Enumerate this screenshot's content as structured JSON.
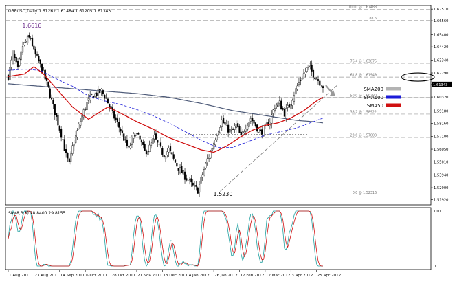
{
  "chart_data": {
    "type": "candlestick",
    "header": "GBPUSD,Daily  1.61262 1.61484 1.61205 1.61343",
    "price_axis": {
      "ticks": [
        "1.67510",
        "1.66560",
        "1.65400",
        "1.64420",
        "1.63340",
        "1.62290",
        "1.61343",
        "1.60320",
        "1.59180",
        "1.58160",
        "1.57100",
        "1.56050",
        "1.55010",
        "1.53940",
        "1.52900",
        "1.51920"
      ],
      "values": [
        1.6751,
        1.6656,
        1.654,
        1.6442,
        1.6334,
        1.6229,
        1.61343,
        1.6032,
        1.5918,
        1.5816,
        1.571,
        1.5605,
        1.5501,
        1.5394,
        1.529,
        1.5192
      ],
      "range": [
        1.515,
        1.678
      ]
    },
    "current_price": "1.61343",
    "horizontal_line_price": 1.6025,
    "fibonacci": [
      {
        "label": "100.0 @ 1.67488",
        "price": 1.67488
      },
      {
        "label": "88.6",
        "price": 1.6658
      },
      {
        "label": "76.4 @ 1.63075",
        "price": 1.63075
      },
      {
        "label": "61.8 @ 1.61949",
        "price": 1.61949
      },
      {
        "label": "50.0 @ 1.60280",
        "price": 1.6028
      },
      {
        "label": "38.2 @ 1.58922",
        "price": 1.58922
      },
      {
        "label": "23.6 @ 1.57008",
        "price": 1.57008
      },
      {
        "label": "0.0 @ 1.52316",
        "price": 1.52316
      }
    ],
    "annotations": [
      {
        "text": "1.6616",
        "index": 13,
        "price": 1.6616
      },
      {
        "text": "1.5230",
        "index": 132,
        "price": 1.523
      }
    ],
    "legend": [
      {
        "name": "SMA200",
        "color": "#b3b3b3"
      },
      {
        "name": "SMA100",
        "color": "#1b1bd8"
      },
      {
        "name": "SMA50",
        "color": "#d01010"
      }
    ],
    "date_labels": [
      {
        "text": "1 Aug 2011",
        "index": 0
      },
      {
        "text": "23 Aug 2011",
        "index": 16
      },
      {
        "text": "14 Sep 2011",
        "index": 32
      },
      {
        "text": "6 Oct 2011",
        "index": 48
      },
      {
        "text": "28 Oct 2011",
        "index": 64
      },
      {
        "text": "21 Nov 2011",
        "index": 80
      },
      {
        "text": "13 Dec 2011",
        "index": 96
      },
      {
        "text": "4 Jan 2012",
        "index": 112
      },
      {
        "text": "26 Jan 2012",
        "index": 128
      },
      {
        "text": "17 Feb 2012",
        "index": 144
      },
      {
        "text": "12 Mar 2012",
        "index": 160
      },
      {
        "text": "3 Apr 2012",
        "index": 176
      },
      {
        "text": "25 Apr 2012",
        "index": 192
      }
    ],
    "close_keypoints": [
      [
        0,
        1.62
      ],
      [
        3,
        1.638
      ],
      [
        6,
        1.625
      ],
      [
        9,
        1.645
      ],
      [
        12,
        1.65
      ],
      [
        14,
        1.652
      ],
      [
        16,
        1.64
      ],
      [
        19,
        1.632
      ],
      [
        22,
        1.622
      ],
      [
        25,
        1.61
      ],
      [
        28,
        1.595
      ],
      [
        31,
        1.582
      ],
      [
        34,
        1.568
      ],
      [
        36,
        1.555
      ],
      [
        38,
        1.548
      ],
      [
        40,
        1.562
      ],
      [
        43,
        1.575
      ],
      [
        46,
        1.588
      ],
      [
        49,
        1.598
      ],
      [
        52,
        1.604
      ],
      [
        55,
        1.606
      ],
      [
        58,
        1.608
      ],
      [
        61,
        1.602
      ],
      [
        64,
        1.592
      ],
      [
        67,
        1.584
      ],
      [
        70,
        1.576
      ],
      [
        73,
        1.566
      ],
      [
        75,
        1.56
      ],
      [
        77,
        1.568
      ],
      [
        79,
        1.574
      ],
      [
        82,
        1.568
      ],
      [
        85,
        1.558
      ],
      [
        88,
        1.562
      ],
      [
        91,
        1.57
      ],
      [
        94,
        1.562
      ],
      [
        97,
        1.556
      ],
      [
        100,
        1.56
      ],
      [
        103,
        1.552
      ],
      [
        106,
        1.545
      ],
      [
        109,
        1.54
      ],
      [
        112,
        1.535
      ],
      [
        115,
        1.53
      ],
      [
        118,
        1.527
      ],
      [
        121,
        1.54
      ],
      [
        124,
        1.552
      ],
      [
        127,
        1.562
      ],
      [
        130,
        1.574
      ],
      [
        133,
        1.584
      ],
      [
        136,
        1.578
      ],
      [
        139,
        1.574
      ],
      [
        142,
        1.58
      ],
      [
        145,
        1.57
      ],
      [
        148,
        1.58
      ],
      [
        151,
        1.586
      ],
      [
        154,
        1.58
      ],
      [
        157,
        1.574
      ],
      [
        160,
        1.578
      ],
      [
        163,
        1.584
      ],
      [
        166,
        1.596
      ],
      [
        169,
        1.598
      ],
      [
        172,
        1.59
      ],
      [
        175,
        1.596
      ],
      [
        178,
        1.606
      ],
      [
        181,
        1.615
      ],
      [
        184,
        1.622
      ],
      [
        187,
        1.628
      ],
      [
        190,
        1.622
      ],
      [
        193,
        1.617
      ],
      [
        196,
        1.612
      ]
    ],
    "sma50_keypoints": [
      [
        0,
        1.62
      ],
      [
        10,
        1.622
      ],
      [
        16,
        1.628
      ],
      [
        22,
        1.622
      ],
      [
        30,
        1.61
      ],
      [
        40,
        1.595
      ],
      [
        50,
        1.585
      ],
      [
        56,
        1.59
      ],
      [
        62,
        1.595
      ],
      [
        70,
        1.59
      ],
      [
        80,
        1.583
      ],
      [
        90,
        1.577
      ],
      [
        100,
        1.57
      ],
      [
        110,
        1.565
      ],
      [
        120,
        1.56
      ],
      [
        128,
        1.558
      ],
      [
        136,
        1.563
      ],
      [
        144,
        1.57
      ],
      [
        152,
        1.576
      ],
      [
        160,
        1.58
      ],
      [
        168,
        1.582
      ],
      [
        176,
        1.586
      ],
      [
        184,
        1.592
      ],
      [
        192,
        1.6
      ],
      [
        196,
        1.603
      ]
    ],
    "sma100_keypoints": [
      [
        0,
        1.625
      ],
      [
        10,
        1.626
      ],
      [
        20,
        1.625
      ],
      [
        30,
        1.618
      ],
      [
        40,
        1.612
      ],
      [
        50,
        1.604
      ],
      [
        60,
        1.6
      ],
      [
        70,
        1.597
      ],
      [
        80,
        1.593
      ],
      [
        90,
        1.588
      ],
      [
        100,
        1.582
      ],
      [
        110,
        1.575
      ],
      [
        120,
        1.568
      ],
      [
        130,
        1.562
      ],
      [
        140,
        1.562
      ],
      [
        150,
        1.567
      ],
      [
        160,
        1.572
      ],
      [
        170,
        1.575
      ],
      [
        180,
        1.578
      ],
      [
        190,
        1.583
      ],
      [
        196,
        1.586
      ]
    ],
    "sma200_keypoints": [
      [
        0,
        1.614
      ],
      [
        20,
        1.612
      ],
      [
        40,
        1.61
      ],
      [
        60,
        1.608
      ],
      [
        80,
        1.606
      ],
      [
        100,
        1.603
      ],
      [
        120,
        1.598
      ],
      [
        140,
        1.592
      ],
      [
        160,
        1.588
      ],
      [
        180,
        1.584
      ],
      [
        190,
        1.583
      ],
      [
        196,
        1.582
      ]
    ],
    "trendline": [
      [
        132,
        1.526
      ],
      [
        205,
        1.613
      ]
    ],
    "secondary_line_price": 1.5725,
    "stochastic": {
      "header": "Sto(8,3,3) 28.8400 29.8155",
      "axis": [
        {
          "text": "100",
          "value": 100
        },
        {
          "text": "0",
          "value": 0
        }
      ],
      "main_color": "#1fa0a0",
      "signal_color": "#d01010"
    }
  }
}
